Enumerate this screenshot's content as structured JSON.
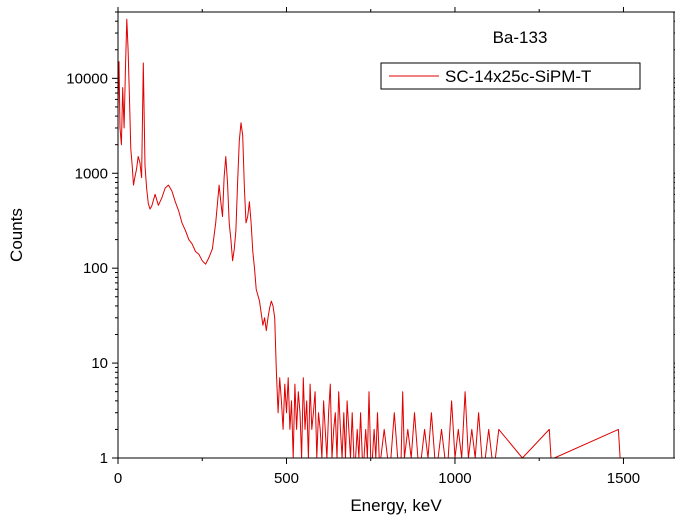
{
  "chart_data": {
    "type": "line",
    "annotation": "Ba-133",
    "xlabel": "Energy, keV",
    "ylabel": "Counts",
    "xlim": [
      0,
      1650
    ],
    "ylim": [
      1,
      50000
    ],
    "yscale": "log",
    "x_ticks": [
      0,
      500,
      1000,
      1500
    ],
    "x_tick_labels": [
      "0",
      "500",
      "1000",
      "1500"
    ],
    "y_ticks": [
      1,
      10,
      100,
      1000,
      10000
    ],
    "y_tick_labels": [
      "1",
      "10",
      "100",
      "1000",
      "10000"
    ],
    "legend_position": "top-right",
    "series": [
      {
        "name": "SC-14x25c-SiPM-T",
        "color": "#e00000",
        "x": [
          0,
          3,
          6,
          10,
          14,
          18,
          22,
          26,
          30,
          34,
          38,
          42,
          46,
          50,
          55,
          60,
          65,
          70,
          75,
          80,
          85,
          90,
          95,
          100,
          110,
          120,
          130,
          140,
          150,
          160,
          170,
          180,
          190,
          200,
          210,
          220,
          230,
          240,
          250,
          260,
          270,
          280,
          290,
          300,
          305,
          310,
          315,
          320,
          325,
          330,
          335,
          340,
          345,
          350,
          355,
          360,
          365,
          370,
          375,
          380,
          385,
          390,
          395,
          400,
          405,
          410,
          420,
          430,
          435,
          440,
          445,
          450,
          455,
          460,
          465,
          470,
          475,
          480,
          485,
          490,
          495,
          500,
          505,
          510,
          515,
          520,
          525,
          530,
          535,
          540,
          545,
          550,
          555,
          560,
          565,
          570,
          575,
          580,
          585,
          590,
          595,
          600,
          605,
          610,
          615,
          620,
          625,
          630,
          635,
          640,
          645,
          650,
          655,
          660,
          665,
          670,
          675,
          680,
          685,
          690,
          695,
          700,
          705,
          710,
          715,
          720,
          725,
          730,
          735,
          740,
          745,
          750,
          755,
          760,
          765,
          770,
          775,
          780,
          790,
          800,
          810,
          820,
          830,
          840,
          845,
          850,
          860,
          870,
          880,
          890,
          900,
          910,
          920,
          930,
          940,
          950,
          960,
          970,
          980,
          990,
          1000,
          1010,
          1020,
          1030,
          1040,
          1050,
          1060,
          1070,
          1080,
          1090,
          1100,
          1110,
          1120,
          1130,
          1200,
          1280,
          1285,
          1290,
          1295,
          1485,
          1490,
          1495
        ],
        "y": [
          5000,
          15000,
          3000,
          2000,
          8000,
          3000,
          12000,
          42000,
          20000,
          6000,
          1800,
          1200,
          750,
          900,
          1100,
          1500,
          1300,
          900,
          14500,
          1200,
          700,
          480,
          420,
          450,
          600,
          460,
          550,
          700,
          750,
          650,
          500,
          400,
          300,
          250,
          200,
          180,
          150,
          140,
          120,
          110,
          130,
          160,
          300,
          750,
          500,
          350,
          900,
          1500,
          800,
          300,
          200,
          120,
          160,
          250,
          800,
          2200,
          3400,
          2500,
          700,
          300,
          350,
          500,
          300,
          150,
          100,
          60,
          45,
          25,
          30,
          22,
          30,
          38,
          45,
          40,
          30,
          8,
          3,
          7,
          4,
          2,
          6,
          3,
          7,
          2,
          4,
          1,
          6,
          2,
          5,
          3,
          1,
          7,
          2,
          4,
          1,
          6,
          2,
          3,
          5,
          1,
          3,
          2,
          1,
          4,
          2,
          1,
          3,
          6,
          1,
          2,
          3,
          1,
          5,
          2,
          1,
          3,
          1,
          4,
          2,
          1,
          3,
          1,
          1,
          2,
          1,
          3,
          1,
          1,
          2,
          1,
          5,
          1,
          1,
          2,
          1,
          3,
          1,
          1,
          2,
          1,
          1,
          3,
          1,
          1,
          5,
          1,
          2,
          1,
          3,
          1,
          1,
          2,
          1,
          3,
          1,
          1,
          2,
          1,
          1,
          4,
          1,
          2,
          1,
          5,
          1,
          2,
          1,
          3,
          1,
          1,
          2,
          1,
          1,
          2,
          1,
          2,
          1,
          1,
          1,
          2,
          1,
          1
        ]
      }
    ]
  }
}
